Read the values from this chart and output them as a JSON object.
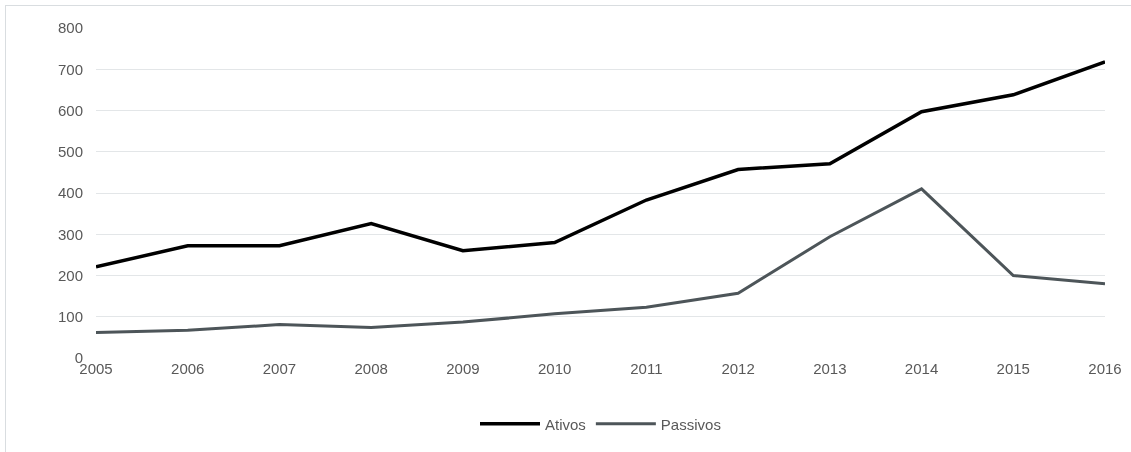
{
  "chart_data": {
    "type": "line",
    "categories": [
      "2005",
      "2006",
      "2007",
      "2008",
      "2009",
      "2010",
      "2011",
      "2012",
      "2013",
      "2014",
      "2015",
      "2016"
    ],
    "series": [
      {
        "name": "Ativos",
        "color": "#000000",
        "values": [
          221,
          272,
          272,
          326,
          260,
          280,
          383,
          457,
          471,
          597,
          638,
          718
        ]
      },
      {
        "name": "Passivos",
        "color": "#4d5559",
        "values": [
          62,
          67,
          81,
          74,
          87,
          107,
          123,
          157,
          294,
          410,
          200,
          180
        ]
      }
    ],
    "ylim": [
      0,
      800
    ],
    "yticks": [
      0,
      100,
      200,
      300,
      400,
      500,
      600,
      700,
      800
    ],
    "grid": "y",
    "legend": "bottom",
    "marker": "none",
    "line_style": "solid"
  }
}
